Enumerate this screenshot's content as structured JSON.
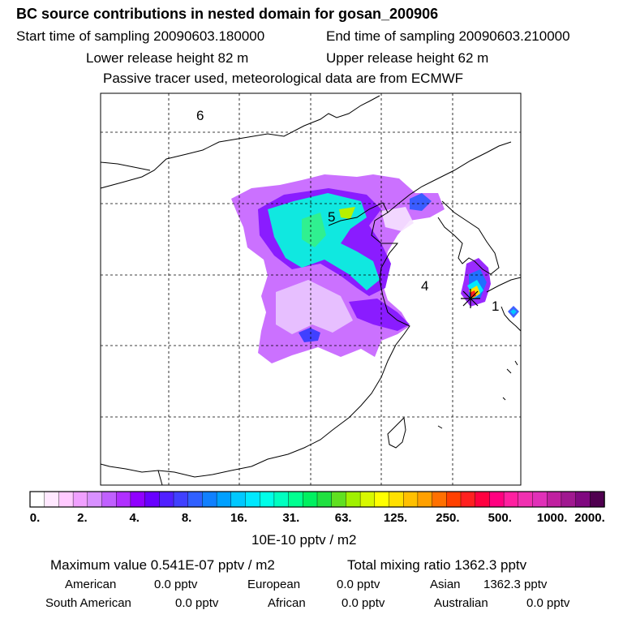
{
  "header": {
    "title": "BC  source contributions in nested domain for gosan_200906",
    "start_label": "Start time of sampling 20090603.180000",
    "end_label": "End time of sampling 20090603.210000",
    "lower_label": "Lower release height   82 m",
    "upper_label": "Upper release height   62 m",
    "note": "Passive tracer used, meteorological data are from ECMWF"
  },
  "map": {
    "region_labels": [
      "6",
      "5",
      "4",
      "1"
    ],
    "receptor_marker": "star-marker"
  },
  "colorbar": {
    "tick_labels": [
      "0.",
      "2.",
      "4.",
      "8.",
      "16.",
      "31.",
      "63.",
      "125.",
      "250.",
      "500.",
      "1000.",
      "2000."
    ],
    "unit": "10E-10 pptv / m2",
    "colors": [
      "#ffffff",
      "#ffe8ff",
      "#ffcaff",
      "#f0a0ff",
      "#d890ff",
      "#c060ff",
      "#b030ff",
      "#9000ff",
      "#6800ff",
      "#5020ff",
      "#4040ff",
      "#3060ff",
      "#1080ff",
      "#00a0ff",
      "#00c8ff",
      "#00e8ff",
      "#00ffe8",
      "#00ffc0",
      "#00ff90",
      "#00f060",
      "#20e040",
      "#60e020",
      "#a0f000",
      "#d8f800",
      "#ffff00",
      "#ffe000",
      "#ffc000",
      "#ffa000",
      "#ff7000",
      "#ff4000",
      "#ff2020",
      "#ff0040",
      "#ff0080",
      "#ff20a0",
      "#f030b0",
      "#e030b8",
      "#c020a0",
      "#a01890",
      "#800880",
      "#500050"
    ]
  },
  "summary": {
    "max_label": "Maximum value  0.541E-07 pptv / m2",
    "total_label": "Total mixing ratio     1362.3 pptv",
    "regions": [
      {
        "name": "American",
        "value": "0.0 pptv"
      },
      {
        "name": "European",
        "value": "0.0 pptv"
      },
      {
        "name": "Asian",
        "value": "1362.3 pptv"
      },
      {
        "name": "South American",
        "value": "0.0 pptv"
      },
      {
        "name": "African",
        "value": "0.0 pptv"
      },
      {
        "name": "Australian",
        "value": "0.0 pptv"
      }
    ]
  },
  "chart_data": {
    "type": "heatmap",
    "title": "BC  source contributions in nested domain for gosan_200906",
    "colorbar_ticks": [
      0,
      2,
      4,
      8,
      16,
      31,
      63,
      125,
      250,
      500,
      1000,
      2000
    ],
    "colorbar_unit": "10E-10 pptv / m2",
    "maximum_value": "0.541E-07 pptv / m2",
    "total_mixing_ratio_pptv": 1362.3,
    "regional_contributions_pptv": {
      "American": 0.0,
      "European": 0.0,
      "Asian": 1362.3,
      "South American": 0.0,
      "African": 0.0,
      "Australian": 0.0
    },
    "grid": true
  }
}
